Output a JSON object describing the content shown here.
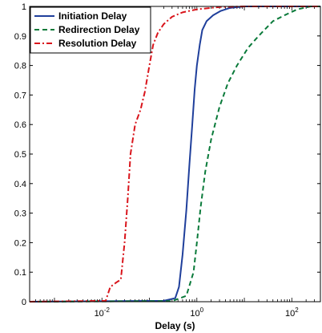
{
  "chart_data": {
    "type": "line",
    "title": "",
    "xlabel": "Delay (s)",
    "ylabel": "",
    "x_scale": "log",
    "xlim": [
      0.0003,
      400
    ],
    "ylim": [
      0,
      1
    ],
    "grid": false,
    "legend_position": "top-left",
    "x_ticks": [
      {
        "value": 0.01,
        "base": "10",
        "exp": "-2"
      },
      {
        "value": 1,
        "base": "10",
        "exp": "0"
      },
      {
        "value": 100,
        "base": "10",
        "exp": "2"
      }
    ],
    "y_ticks": [
      {
        "value": 0,
        "label": "0"
      },
      {
        "value": 0.1,
        "label": "0.1"
      },
      {
        "value": 0.2,
        "label": "0.2"
      },
      {
        "value": 0.3,
        "label": "0.3"
      },
      {
        "value": 0.4,
        "label": "0.4"
      },
      {
        "value": 0.5,
        "label": "0.5"
      },
      {
        "value": 0.6,
        "label": "0.6"
      },
      {
        "value": 0.7,
        "label": "0.7"
      },
      {
        "value": 0.8,
        "label": "0.8"
      },
      {
        "value": 0.9,
        "label": "0.9"
      },
      {
        "value": 1,
        "label": "1"
      }
    ],
    "series": [
      {
        "name": "Initiation Delay",
        "color": "#1f3f9b",
        "dash": "solid",
        "points": [
          [
            0.0003,
            0
          ],
          [
            0.2,
            0.003
          ],
          [
            0.35,
            0.012
          ],
          [
            0.42,
            0.05
          ],
          [
            0.5,
            0.16
          ],
          [
            0.6,
            0.31
          ],
          [
            0.7,
            0.47
          ],
          [
            0.8,
            0.6
          ],
          [
            0.9,
            0.72
          ],
          [
            1.0,
            0.8
          ],
          [
            1.15,
            0.87
          ],
          [
            1.3,
            0.92
          ],
          [
            1.6,
            0.95
          ],
          [
            2.2,
            0.97
          ],
          [
            3.2,
            0.985
          ],
          [
            5.0,
            0.995
          ],
          [
            10,
            1.0
          ],
          [
            400,
            1.0
          ]
        ]
      },
      {
        "name": "Redirection Delay",
        "color": "#0a7a3a",
        "dash": "dashed",
        "points": [
          [
            0.0003,
            0
          ],
          [
            0.3,
            0.002
          ],
          [
            0.6,
            0.02
          ],
          [
            0.85,
            0.1
          ],
          [
            1.0,
            0.2
          ],
          [
            1.2,
            0.32
          ],
          [
            1.5,
            0.44
          ],
          [
            2.0,
            0.55
          ],
          [
            3.0,
            0.66
          ],
          [
            4.5,
            0.74
          ],
          [
            7,
            0.8
          ],
          [
            12,
            0.86
          ],
          [
            20,
            0.9
          ],
          [
            40,
            0.95
          ],
          [
            70,
            0.97
          ],
          [
            130,
            0.99
          ],
          [
            250,
            1.0
          ],
          [
            400,
            1.0
          ]
        ]
      },
      {
        "name": "Resolution Delay",
        "color": "#d9141b",
        "dash": "dashdot",
        "points": [
          [
            0.0003,
            0
          ],
          [
            0.012,
            0.003
          ],
          [
            0.015,
            0.05
          ],
          [
            0.02,
            0.065
          ],
          [
            0.025,
            0.075
          ],
          [
            0.03,
            0.2
          ],
          [
            0.035,
            0.35
          ],
          [
            0.04,
            0.5
          ],
          [
            0.05,
            0.6
          ],
          [
            0.065,
            0.65
          ],
          [
            0.08,
            0.71
          ],
          [
            0.1,
            0.8
          ],
          [
            0.12,
            0.87
          ],
          [
            0.15,
            0.91
          ],
          [
            0.2,
            0.94
          ],
          [
            0.3,
            0.965
          ],
          [
            0.5,
            0.98
          ],
          [
            1.0,
            0.99
          ],
          [
            3.0,
            0.998
          ],
          [
            10,
            1.0
          ],
          [
            400,
            1.0
          ]
        ]
      }
    ]
  }
}
